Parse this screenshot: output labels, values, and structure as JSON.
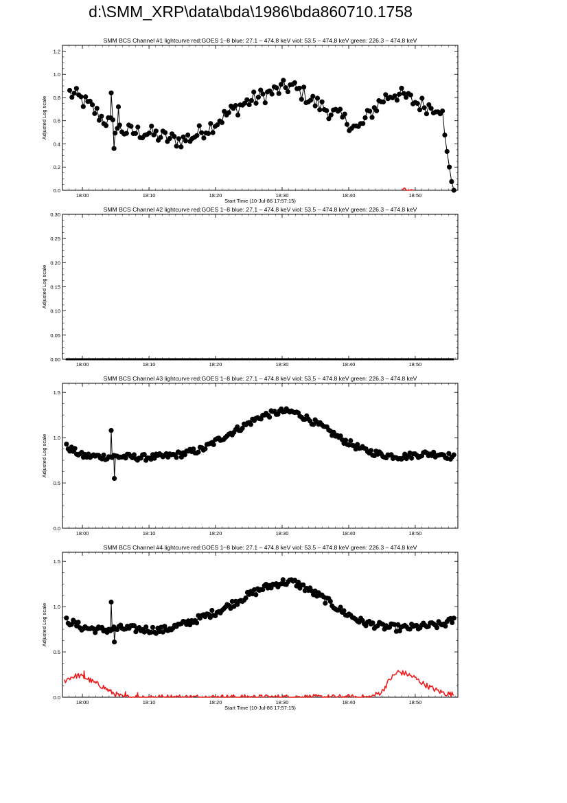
{
  "page": {
    "title": "d:\\SMM_XRP\\data\\bda\\1986\\bda860710.1758"
  },
  "colors": {
    "axes": "#000000",
    "data": "#000000",
    "goes": "#ee1c1c"
  },
  "chart_data": [
    {
      "type": "line",
      "title": "SMM BCS Channel #1 lightcurve  red:GOES 1–8  blue: 27.1 – 474.8 keV  viol: 53.5 – 474.8 keV  green: 226.3 – 474.8 keV",
      "xlabel": "Start Time (10-Jul-86 17:57:15)",
      "ylabel": "Adjusted Log scale",
      "xlim": [
        17.95,
        18.94
      ],
      "ylim": [
        0,
        1.25
      ],
      "xticks": [
        18.0,
        18.1667,
        18.3333,
        18.5,
        18.6667,
        18.8333
      ],
      "xticklabels": [
        "18:00",
        "18:10",
        "18:20",
        "18:30",
        "18:40",
        "18:50"
      ],
      "yticks": [
        0,
        0.2,
        0.4,
        0.6,
        0.8,
        1.0,
        1.2
      ],
      "yticklabels": [
        "0.0",
        "0.2",
        "0.4",
        "0.6",
        "0.8",
        "1.0",
        "1.2"
      ],
      "series": [
        {
          "role": "data",
          "color": "#000000",
          "markers": true,
          "anchors": [
            [
              17.968,
              0.84
            ],
            [
              17.99,
              0.8
            ],
            [
              18.02,
              0.72
            ],
            [
              18.05,
              0.62
            ],
            [
              18.08,
              0.55
            ],
            [
              18.1,
              0.52
            ],
            [
              18.12,
              0.5
            ],
            [
              18.16,
              0.5
            ],
            [
              18.19,
              0.47
            ],
            [
              18.22,
              0.44
            ],
            [
              18.25,
              0.43
            ],
            [
              18.28,
              0.47
            ],
            [
              18.32,
              0.55
            ],
            [
              18.36,
              0.65
            ],
            [
              18.4,
              0.74
            ],
            [
              18.44,
              0.8
            ],
            [
              18.48,
              0.85
            ],
            [
              18.52,
              0.9
            ],
            [
              18.55,
              0.84
            ],
            [
              18.58,
              0.76
            ],
            [
              18.61,
              0.7
            ],
            [
              18.64,
              0.64
            ],
            [
              18.67,
              0.58
            ],
            [
              18.69,
              0.52
            ],
            [
              18.72,
              0.66
            ],
            [
              18.75,
              0.78
            ],
            [
              18.78,
              0.84
            ],
            [
              18.81,
              0.8
            ],
            [
              18.84,
              0.75
            ],
            [
              18.87,
              0.72
            ],
            [
              18.89,
              0.73
            ],
            [
              18.9,
              0.7
            ],
            [
              18.91,
              0.35
            ],
            [
              18.92,
              0.2
            ],
            [
              18.93,
              0.0
            ]
          ],
          "noise": 0.07,
          "spikes": [
            [
              18.072,
              0.84
            ],
            [
              18.079,
              0.36
            ],
            [
              18.09,
              0.72
            ]
          ],
          "count": 170
        },
        {
          "role": "goes",
          "color": "#ee1c1c",
          "markers": false,
          "anchors": [
            [
              18.8,
              0.0
            ],
            [
              18.806,
              0.02
            ],
            [
              18.812,
              0.0
            ],
            [
              18.822,
              0.0
            ],
            [
              18.826,
              0.01
            ],
            [
              18.83,
              0.0
            ]
          ],
          "noise": 0.0,
          "spikes": [],
          "count": 6
        }
      ]
    },
    {
      "type": "line",
      "title": "SMM BCS Channel #2 lightcurve  red:GOES 1–8  blue: 27.1 – 474.8 keV  viol: 53.5 – 474.8 keV  green: 226.3 – 474.8 keV",
      "xlabel": "",
      "ylabel": "Adjusted Log scale",
      "xlim": [
        17.95,
        18.94
      ],
      "ylim": [
        0,
        0.3
      ],
      "xticks": [
        18.0,
        18.1667,
        18.3333,
        18.5,
        18.6667,
        18.8333
      ],
      "xticklabels": [
        "18:00",
        "18:10",
        "18:20",
        "18:30",
        "18:40",
        "18:50"
      ],
      "yticks": [
        0,
        0.05,
        0.1,
        0.15,
        0.2,
        0.25,
        0.3
      ],
      "yticklabels": [
        "0.00",
        "0.05",
        "0.10",
        "0.15",
        "0.20",
        "0.25",
        "0.30"
      ],
      "series": [
        {
          "role": "data",
          "color": "#000000",
          "markers": false,
          "thick": true,
          "anchors": [
            [
              17.958,
              0.0
            ],
            [
              18.93,
              0.0
            ]
          ],
          "noise": 0.0,
          "spikes": [],
          "count": 2
        }
      ]
    },
    {
      "type": "line",
      "title": "SMM BCS Channel #3 lightcurve  red:GOES 1–8  blue: 27.1 – 474.8 keV  viol: 53.5 – 474.8 keV  green: 226.3 – 474.8 keV",
      "xlabel": "",
      "ylabel": "Adjusted Log scale",
      "xlim": [
        17.95,
        18.94
      ],
      "ylim": [
        0,
        1.6
      ],
      "xticks": [
        18.0,
        18.1667,
        18.3333,
        18.5,
        18.6667,
        18.8333
      ],
      "xticklabels": [
        "18:00",
        "18:10",
        "18:20",
        "18:30",
        "18:40",
        "18:50"
      ],
      "yticks": [
        0,
        0.5,
        1.0,
        1.5
      ],
      "yticklabels": [
        "0.0",
        "0.5",
        "1.0",
        "1.5"
      ],
      "series": [
        {
          "role": "data",
          "color": "#000000",
          "markers": true,
          "anchors": [
            [
              17.96,
              0.9
            ],
            [
              18.0,
              0.8
            ],
            [
              18.05,
              0.79
            ],
            [
              18.1,
              0.79
            ],
            [
              18.15,
              0.78
            ],
            [
              18.2,
              0.79
            ],
            [
              18.25,
              0.82
            ],
            [
              18.3,
              0.87
            ],
            [
              18.35,
              1.0
            ],
            [
              18.4,
              1.12
            ],
            [
              18.45,
              1.24
            ],
            [
              18.5,
              1.29
            ],
            [
              18.53,
              1.28
            ],
            [
              18.56,
              1.22
            ],
            [
              18.6,
              1.12
            ],
            [
              18.65,
              0.98
            ],
            [
              18.7,
              0.87
            ],
            [
              18.75,
              0.81
            ],
            [
              18.8,
              0.79
            ],
            [
              18.85,
              0.82
            ],
            [
              18.9,
              0.82
            ],
            [
              18.93,
              0.78
            ]
          ],
          "noise": 0.035,
          "spikes": [
            [
              18.072,
              1.08
            ],
            [
              18.08,
              0.55
            ]
          ],
          "count": 230
        }
      ]
    },
    {
      "type": "line",
      "title": "SMM BCS Channel #4 lightcurve  red:GOES 1–8  blue: 27.1 – 474.8 keV  viol: 53.5 – 474.8 keV  green: 226.3 – 474.8 keV",
      "xlabel": "Start Time (10-Jul-86 17:57:15)",
      "ylabel": "Adjusted Log scale",
      "xlim": [
        17.95,
        18.94
      ],
      "ylim": [
        0,
        1.6
      ],
      "xticks": [
        18.0,
        18.1667,
        18.3333,
        18.5,
        18.6667,
        18.8333
      ],
      "xticklabels": [
        "18:00",
        "18:10",
        "18:20",
        "18:30",
        "18:40",
        "18:50"
      ],
      "yticks": [
        0,
        0.5,
        1.0,
        1.5
      ],
      "yticklabels": [
        "0.0",
        "0.5",
        "1.0",
        "1.5"
      ],
      "series": [
        {
          "role": "data",
          "color": "#000000",
          "markers": true,
          "anchors": [
            [
              17.96,
              0.85
            ],
            [
              18.0,
              0.77
            ],
            [
              18.05,
              0.74
            ],
            [
              18.1,
              0.76
            ],
            [
              18.15,
              0.75
            ],
            [
              18.2,
              0.74
            ],
            [
              18.25,
              0.8
            ],
            [
              18.3,
              0.88
            ],
            [
              18.35,
              0.97
            ],
            [
              18.4,
              1.09
            ],
            [
              18.45,
              1.2
            ],
            [
              18.5,
              1.27
            ],
            [
              18.53,
              1.27
            ],
            [
              18.56,
              1.2
            ],
            [
              18.6,
              1.1
            ],
            [
              18.65,
              0.95
            ],
            [
              18.7,
              0.83
            ],
            [
              18.75,
              0.78
            ],
            [
              18.8,
              0.76
            ],
            [
              18.85,
              0.78
            ],
            [
              18.9,
              0.8
            ],
            [
              18.93,
              0.85
            ]
          ],
          "noise": 0.04,
          "spikes": [
            [
              18.072,
              1.05
            ],
            [
              18.08,
              0.61
            ]
          ],
          "count": 230
        },
        {
          "role": "goes",
          "color": "#ee1c1c",
          "markers": false,
          "anchors": [
            [
              17.955,
              0.18
            ],
            [
              17.97,
              0.22
            ],
            [
              17.99,
              0.24
            ],
            [
              18.01,
              0.21
            ],
            [
              18.03,
              0.16
            ],
            [
              18.05,
              0.12
            ],
            [
              18.07,
              0.06
            ],
            [
              18.09,
              0.02
            ],
            [
              18.1,
              0.0
            ],
            [
              18.13,
              0.0
            ],
            [
              18.16,
              0.0
            ],
            [
              18.2,
              0.0
            ],
            [
              18.3,
              0.0
            ],
            [
              18.4,
              0.0
            ],
            [
              18.5,
              0.0
            ],
            [
              18.6,
              0.0
            ],
            [
              18.7,
              0.0
            ],
            [
              18.72,
              0.0
            ],
            [
              18.75,
              0.06
            ],
            [
              18.77,
              0.2
            ],
            [
              18.79,
              0.28
            ],
            [
              18.81,
              0.26
            ],
            [
              18.83,
              0.22
            ],
            [
              18.85,
              0.16
            ],
            [
              18.87,
              0.11
            ],
            [
              18.89,
              0.07
            ],
            [
              18.91,
              0.04
            ],
            [
              18.93,
              0.03
            ]
          ],
          "noise": 0.03,
          "spikes": [
            [
              18.004,
              0.29
            ],
            [
              18.108,
              0.06
            ],
            [
              18.138,
              0.05
            ],
            [
              18.172,
              0.02
            ]
          ],
          "count": 420
        }
      ]
    }
  ]
}
